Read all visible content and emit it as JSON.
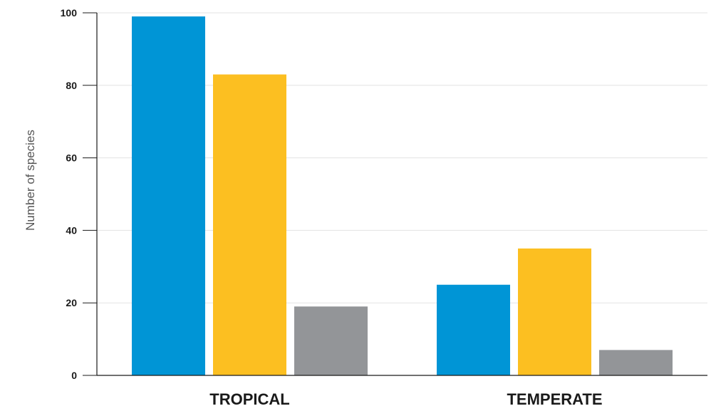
{
  "chart_data": {
    "type": "bar",
    "categories": [
      "TROPICAL",
      "TEMPERATE"
    ],
    "series": [
      {
        "values": [
          99,
          25
        ],
        "color": "#0095d6"
      },
      {
        "values": [
          83,
          35
        ],
        "color": "#fcbf21"
      },
      {
        "values": [
          19,
          7
        ],
        "color": "#939598"
      }
    ],
    "ylabel": "Number of species",
    "ylim": [
      0,
      100
    ],
    "yticks": [
      0,
      20,
      40,
      60,
      80,
      100
    ],
    "grid": true,
    "legend": "none"
  }
}
